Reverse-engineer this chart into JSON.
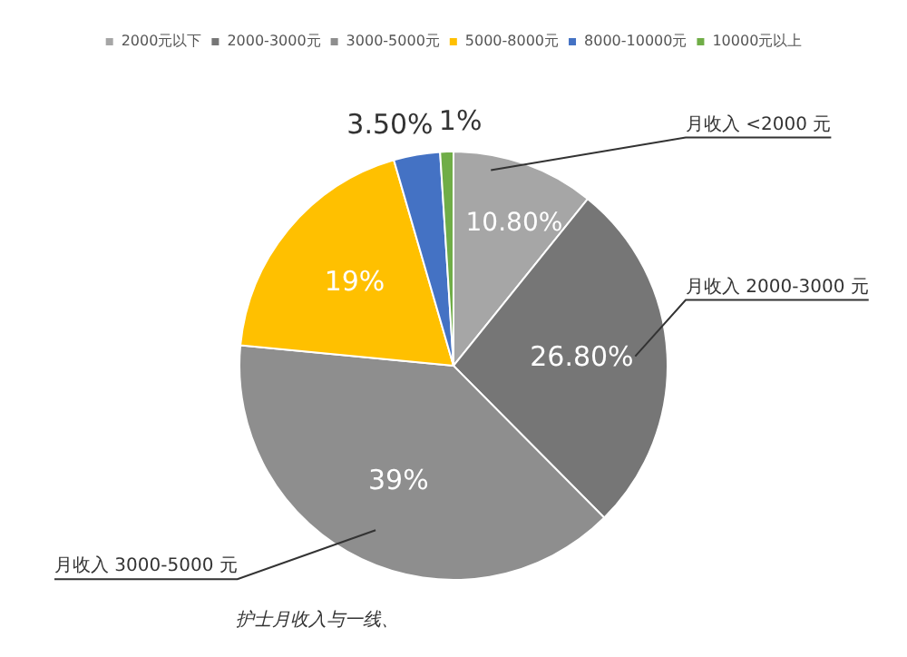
{
  "chart_data": {
    "type": "pie",
    "categories": [
      "2000元以下",
      "2000-3000元",
      "3000-5000元",
      "5000-8000元",
      "8000-10000元",
      "10000元以上"
    ],
    "values": [
      10.8,
      26.8,
      39,
      19,
      3.5,
      1
    ],
    "value_labels": [
      "10.80%",
      "26.80%",
      "39%",
      "19%",
      "3.50%",
      "1%"
    ],
    "colors": [
      "#a6a6a6",
      "#767676",
      "#8e8e8e",
      "#ffc000",
      "#4472c4",
      "#70ad47"
    ],
    "legend": "top",
    "annotations": [
      "月收入 <2000 元",
      "月收入 2000-3000 元",
      "月收入 3000-5000 元",
      "护士月收入与一线、"
    ]
  }
}
